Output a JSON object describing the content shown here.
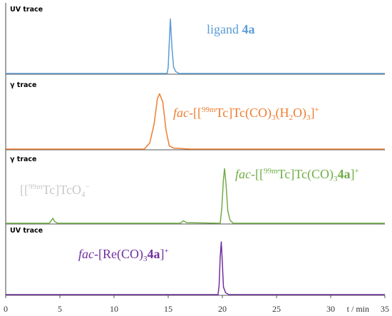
{
  "chart_data": {
    "type": "line",
    "xlabel": "t / min",
    "xlim": [
      0,
      35
    ],
    "xticks": [
      0,
      5,
      10,
      15,
      20,
      25,
      30,
      35
    ],
    "panels": [
      {
        "label": "UV trace",
        "ylim": [
          0,
          100
        ],
        "series": [
          {
            "color": "#5b9bd5",
            "x": [
              0,
              14.9,
              15.0,
              15.1,
              15.2,
              15.35,
              15.5,
              15.7,
              16,
              35
            ],
            "values": [
              0,
              0,
              10,
              50,
              87,
              40,
              10,
              3,
              0,
              0
            ]
          }
        ],
        "annotations": [
          {
            "color": "#5b9bd5",
            "parts": [
              {
                "text": "ligand ",
                "style": "normal"
              },
              {
                "text": "4a",
                "style": "bold"
              }
            ]
          }
        ]
      },
      {
        "label": "γ trace",
        "ylim": [
          0,
          100
        ],
        "series": [
          {
            "color": "#ed7d31",
            "x": [
              0,
              12.8,
              13.3,
              13.7,
              14.0,
              14.2,
              14.5,
              14.8,
              15.1,
              15.5,
              16,
              17,
              35
            ],
            "values": [
              0,
              0,
              10,
              40,
              80,
              88,
              75,
              30,
              5,
              1.5,
              1,
              0,
              0
            ]
          }
        ],
        "annotations": [
          {
            "color": "#ed7d31",
            "parts": [
              {
                "text": "fac",
                "style": "italic"
              },
              {
                "text": "-[[",
                "style": "normal"
              },
              {
                "text": "99m",
                "style": "sup"
              },
              {
                "text": "Tc]Tc(CO)",
                "style": "normal"
              },
              {
                "text": "3",
                "style": "sub"
              },
              {
                "text": "(H",
                "style": "normal"
              },
              {
                "text": "2",
                "style": "sub"
              },
              {
                "text": "O)",
                "style": "normal"
              },
              {
                "text": "3",
                "style": "sub"
              },
              {
                "text": "]",
                "style": "normal"
              },
              {
                "text": "+",
                "style": "sup"
              }
            ]
          }
        ]
      },
      {
        "label": "γ trace",
        "ylim": [
          0,
          100
        ],
        "series": [
          {
            "color": "#70ad47",
            "x": [
              0,
              4.0,
              4.2,
              4.35,
              4.5,
              4.8,
              16.1,
              16.4,
              16.7,
              19.8,
              19.95,
              20.1,
              20.2,
              20.35,
              20.5,
              20.7,
              21,
              35
            ],
            "values": [
              0,
              0,
              4,
              8,
              3,
              0,
              0,
              4,
              1,
              0,
              25,
              70,
              87,
              60,
              20,
              5,
              0,
              0
            ]
          }
        ],
        "annotations": [
          {
            "color": "#70ad47",
            "parts": [
              {
                "text": "fac",
                "style": "italic"
              },
              {
                "text": "-[[",
                "style": "normal"
              },
              {
                "text": "99m",
                "style": "sup"
              },
              {
                "text": "Tc]Tc(CO)",
                "style": "normal"
              },
              {
                "text": "3",
                "style": "sub"
              },
              {
                "text": "4a",
                "style": "bold"
              },
              {
                "text": "]",
                "style": "normal"
              },
              {
                "text": "+",
                "style": "sup"
              }
            ]
          },
          {
            "color": "#c8c8c8",
            "parts": [
              {
                "text": "[[",
                "style": "normal"
              },
              {
                "text": "99m",
                "style": "sup"
              },
              {
                "text": "Tc]TcO",
                "style": "normal"
              },
              {
                "text": "4",
                "style": "sub"
              },
              {
                "text": "−",
                "style": "sup"
              }
            ]
          }
        ]
      },
      {
        "label": "UV trace",
        "ylim": [
          0,
          100
        ],
        "series": [
          {
            "color": "#7030a0",
            "x": [
              0,
              19.6,
              19.7,
              19.8,
              19.9,
              20.0,
              20.1,
              20.3,
              20.6,
              35
            ],
            "values": [
              0,
              0,
              15,
              60,
              84,
              50,
              12,
              3,
              0,
              0
            ]
          }
        ],
        "annotations": [
          {
            "color": "#7030a0",
            "parts": [
              {
                "text": "fac",
                "style": "italic"
              },
              {
                "text": "-[Re(CO)",
                "style": "normal"
              },
              {
                "text": "3",
                "style": "sub"
              },
              {
                "text": "4a",
                "style": "bold"
              },
              {
                "text": "]",
                "style": "normal"
              },
              {
                "text": "+",
                "style": "sup"
              }
            ]
          }
        ]
      }
    ]
  }
}
